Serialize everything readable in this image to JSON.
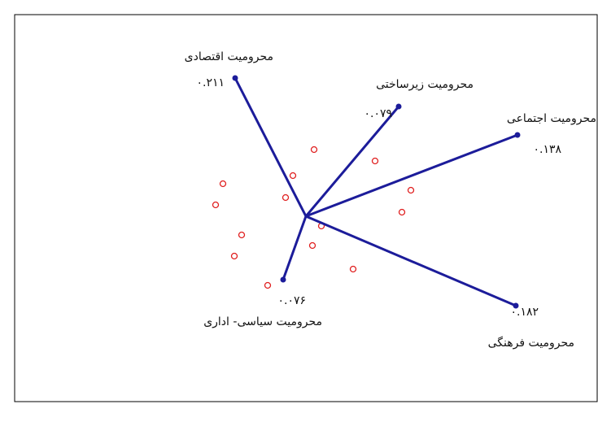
{
  "chart_data": {
    "type": "star",
    "categories": [
      "محرومیت اقتصادی",
      "محرومیت زیرساختی",
      "محرومیت اجتماعی",
      "محرومیت فرهنگی",
      "محرومیت سیاسی- اداری"
    ],
    "values": [
      0.211,
      0.079,
      0.138,
      0.182,
      0.076
    ],
    "value_labels": [
      "۰.۲۱۱",
      "۰.۰۷۹",
      "۰.۱۳۸",
      "۰.۱۸۲",
      "۰.۰۷۶"
    ],
    "color": "#1c1c9a",
    "point_color": "#e02020"
  }
}
